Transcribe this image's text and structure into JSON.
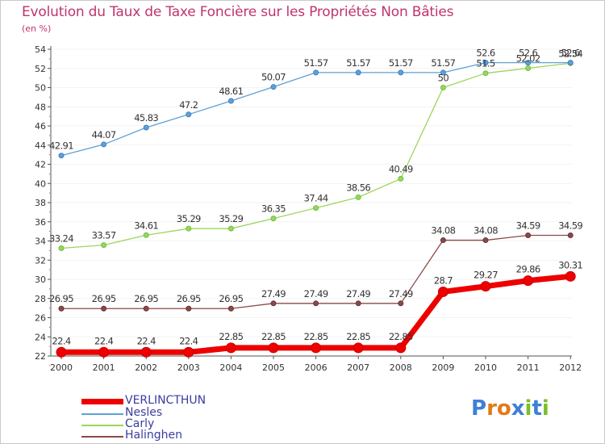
{
  "title": "Evolution du Taux de Taxe Foncière sur les Propriétés Non Bâties",
  "unit_label": "(en %)",
  "brand": {
    "letters": [
      "P",
      "r",
      "o",
      "x",
      "i",
      "t",
      "i"
    ],
    "colors": [
      "#3f7fd6",
      "#e07a1a",
      "#e07a1a",
      "#3f7fd6",
      "#7bbf2a",
      "#3f7fd6",
      "#7bbf2a"
    ]
  },
  "chart_data": {
    "type": "line",
    "title": "Evolution du Taux de Taxe Foncière sur les Propriétés Non Bâties",
    "ylabel": "(en %)",
    "xlabel": "",
    "ylim": [
      22,
      54
    ],
    "yticks": [
      22,
      24,
      26,
      28,
      30,
      32,
      34,
      36,
      38,
      40,
      42,
      44,
      46,
      48,
      50,
      52,
      54
    ],
    "x": [
      "2000",
      "2001",
      "2002",
      "2003",
      "2004",
      "2005",
      "2006",
      "2007",
      "2008",
      "2009",
      "2010",
      "2011",
      "2012"
    ],
    "series": [
      {
        "name": "VERLINCTHUN",
        "color": "#ee0000",
        "marker": "#cc0000",
        "thick": true,
        "values": [
          22.4,
          22.4,
          22.4,
          22.4,
          22.85,
          22.85,
          22.85,
          22.85,
          22.85,
          28.7,
          29.27,
          29.86,
          30.31
        ],
        "labels": [
          "22.4",
          "22.4",
          "22.4",
          "22.4",
          "22.85",
          "22.85",
          "22.85",
          "22.85",
          "22.85",
          "28.7",
          "29.27",
          "29.86",
          "30.31"
        ]
      },
      {
        "name": "Nesles",
        "color": "#5ea1d6",
        "marker": "#3f7fc0",
        "thick": false,
        "values": [
          42.91,
          44.07,
          45.83,
          47.2,
          48.61,
          50.07,
          51.57,
          51.57,
          51.57,
          51.57,
          52.6,
          52.6,
          52.6
        ],
        "labels": [
          "42.91",
          "44.07",
          "45.83",
          "47.2",
          "48.61",
          "50.07",
          "51.57",
          "51.57",
          "51.57",
          "51.57",
          "52.6",
          "52.6",
          "52.6"
        ]
      },
      {
        "name": "Carly",
        "color": "#9ad65c",
        "marker": "#6cc040",
        "thick": false,
        "values": [
          33.24,
          33.57,
          34.61,
          35.29,
          35.29,
          36.35,
          37.44,
          38.56,
          40.49,
          50,
          51.5,
          52.02,
          52.54
        ],
        "labels": [
          "33.24",
          "33.57",
          "34.61",
          "35.29",
          "35.29",
          "36.35",
          "37.44",
          "38.56",
          "40.49",
          "50",
          "51.5",
          "52.02",
          "52.54"
        ]
      },
      {
        "name": "Halinghen",
        "color": "#8a4a4a",
        "marker": "#6b3030",
        "thick": false,
        "values": [
          26.95,
          26.95,
          26.95,
          26.95,
          26.95,
          27.49,
          27.49,
          27.49,
          27.49,
          34.08,
          34.08,
          34.59,
          34.59
        ],
        "labels": [
          "26.95",
          "26.95",
          "26.95",
          "26.95",
          "26.95",
          "27.49",
          "27.49",
          "27.49",
          "27.49",
          "34.08",
          "34.08",
          "34.59",
          "34.59"
        ]
      }
    ]
  }
}
